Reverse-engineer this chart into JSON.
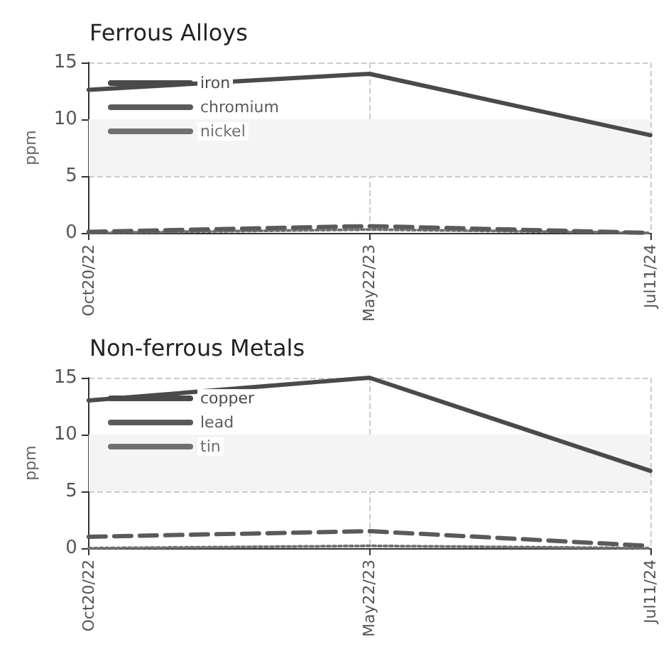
{
  "chart_data": [
    {
      "type": "line",
      "title": "Ferrous Alloys",
      "ylabel": "ppm",
      "categories": [
        "Oct20/22",
        "May22/23",
        "Jul11/24"
      ],
      "ylim": [
        0,
        15
      ],
      "yticks": [
        0,
        5,
        10,
        15
      ],
      "grid": true,
      "legend": "top left",
      "marker": "none",
      "bands": [
        {
          "axis": "y",
          "from": 5,
          "to": 10,
          "color": "#f4f4f4"
        }
      ],
      "series": [
        {
          "name": "iron",
          "color": "#4a4a4a",
          "values": [
            12.6,
            14,
            8.6
          ],
          "line_style": "solid"
        },
        {
          "name": "chromium",
          "color": "#5a5a5a",
          "values": [
            0.1,
            0.6,
            0
          ],
          "line_style": "dashed"
        },
        {
          "name": "nickel",
          "color": "#707070",
          "values": [
            0,
            0.3,
            0
          ],
          "line_style": "dotted"
        }
      ]
    },
    {
      "type": "line",
      "title": "Non-ferrous Metals",
      "ylabel": "ppm",
      "categories": [
        "Oct20/22",
        "May22/23",
        "Jul11/24"
      ],
      "ylim": [
        0,
        15
      ],
      "yticks": [
        0,
        5,
        10,
        15
      ],
      "grid": true,
      "legend": "top left",
      "marker": "none",
      "bands": [
        {
          "axis": "y",
          "from": 5,
          "to": 10,
          "color": "#f4f4f4"
        }
      ],
      "series": [
        {
          "name": "copper",
          "color": "#4a4a4a",
          "values": [
            13,
            15,
            6.8
          ],
          "line_style": "solid"
        },
        {
          "name": "lead",
          "color": "#5a5a5a",
          "values": [
            1,
            1.5,
            0.2
          ],
          "line_style": "dashed"
        },
        {
          "name": "tin",
          "color": "#707070",
          "values": [
            0,
            0.2,
            0
          ],
          "line_style": "dotted"
        }
      ]
    }
  ]
}
